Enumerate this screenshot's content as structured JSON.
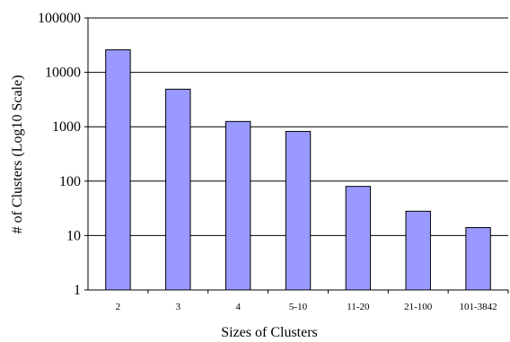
{
  "chart_data": {
    "type": "bar",
    "title": "",
    "xlabel": "Sizes of Clusters",
    "ylabel": "# of Clusters (Log10 Scale)",
    "y_scale": "log10",
    "ylim": [
      1,
      100000
    ],
    "y_ticks": [
      "1",
      "10",
      "100",
      "1000",
      "10000",
      "100000"
    ],
    "grid": true,
    "legend": "none",
    "bar_color": "#9999ff",
    "categories": [
      "2",
      "3",
      "4",
      "5-10",
      "11-20",
      "21-100",
      "101-3842"
    ],
    "values": [
      26000,
      4900,
      1250,
      820,
      80,
      28,
      14
    ]
  }
}
